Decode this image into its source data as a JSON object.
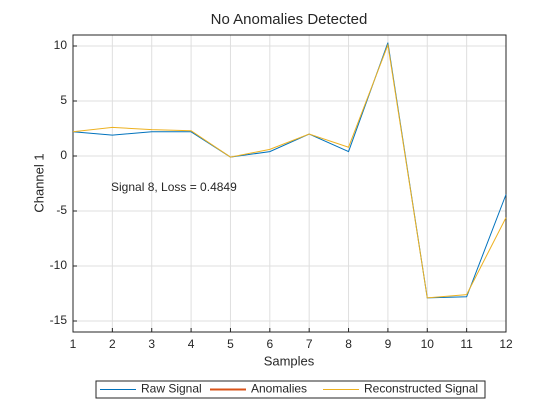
{
  "chart_data": {
    "type": "line",
    "title": "No Anomalies Detected",
    "xlabel": "Samples",
    "ylabel": "Channel 1",
    "annotation": "Signal 8, Loss = 0.4849",
    "x": [
      1,
      2,
      3,
      4,
      5,
      6,
      7,
      8,
      9,
      10,
      11,
      12
    ],
    "series": [
      {
        "name": "Raw Signal",
        "color": "#0072bd",
        "values": [
          2.2,
          1.9,
          2.2,
          2.2,
          -0.1,
          0.4,
          2.0,
          0.4,
          10.3,
          -12.9,
          -12.8,
          -3.5
        ]
      },
      {
        "name": "Anomalies",
        "color": "#d95319",
        "values": [
          null,
          null,
          null,
          null,
          null,
          null,
          null,
          null,
          null,
          null,
          null,
          null
        ]
      },
      {
        "name": "Reconstructed Signal",
        "color": "#edb120",
        "values": [
          2.2,
          2.6,
          2.4,
          2.3,
          -0.1,
          0.6,
          2.0,
          0.8,
          10.1,
          -12.9,
          -12.6,
          -5.6
        ]
      }
    ],
    "xlim": [
      1,
      12
    ],
    "xticks": [
      1,
      2,
      3,
      4,
      5,
      6,
      7,
      8,
      9,
      10,
      11,
      12
    ],
    "ylim": [
      -16,
      11
    ],
    "yticks": [
      -15,
      -10,
      -5,
      0,
      5,
      10
    ],
    "grid": true,
    "legend": "south-outside"
  }
}
